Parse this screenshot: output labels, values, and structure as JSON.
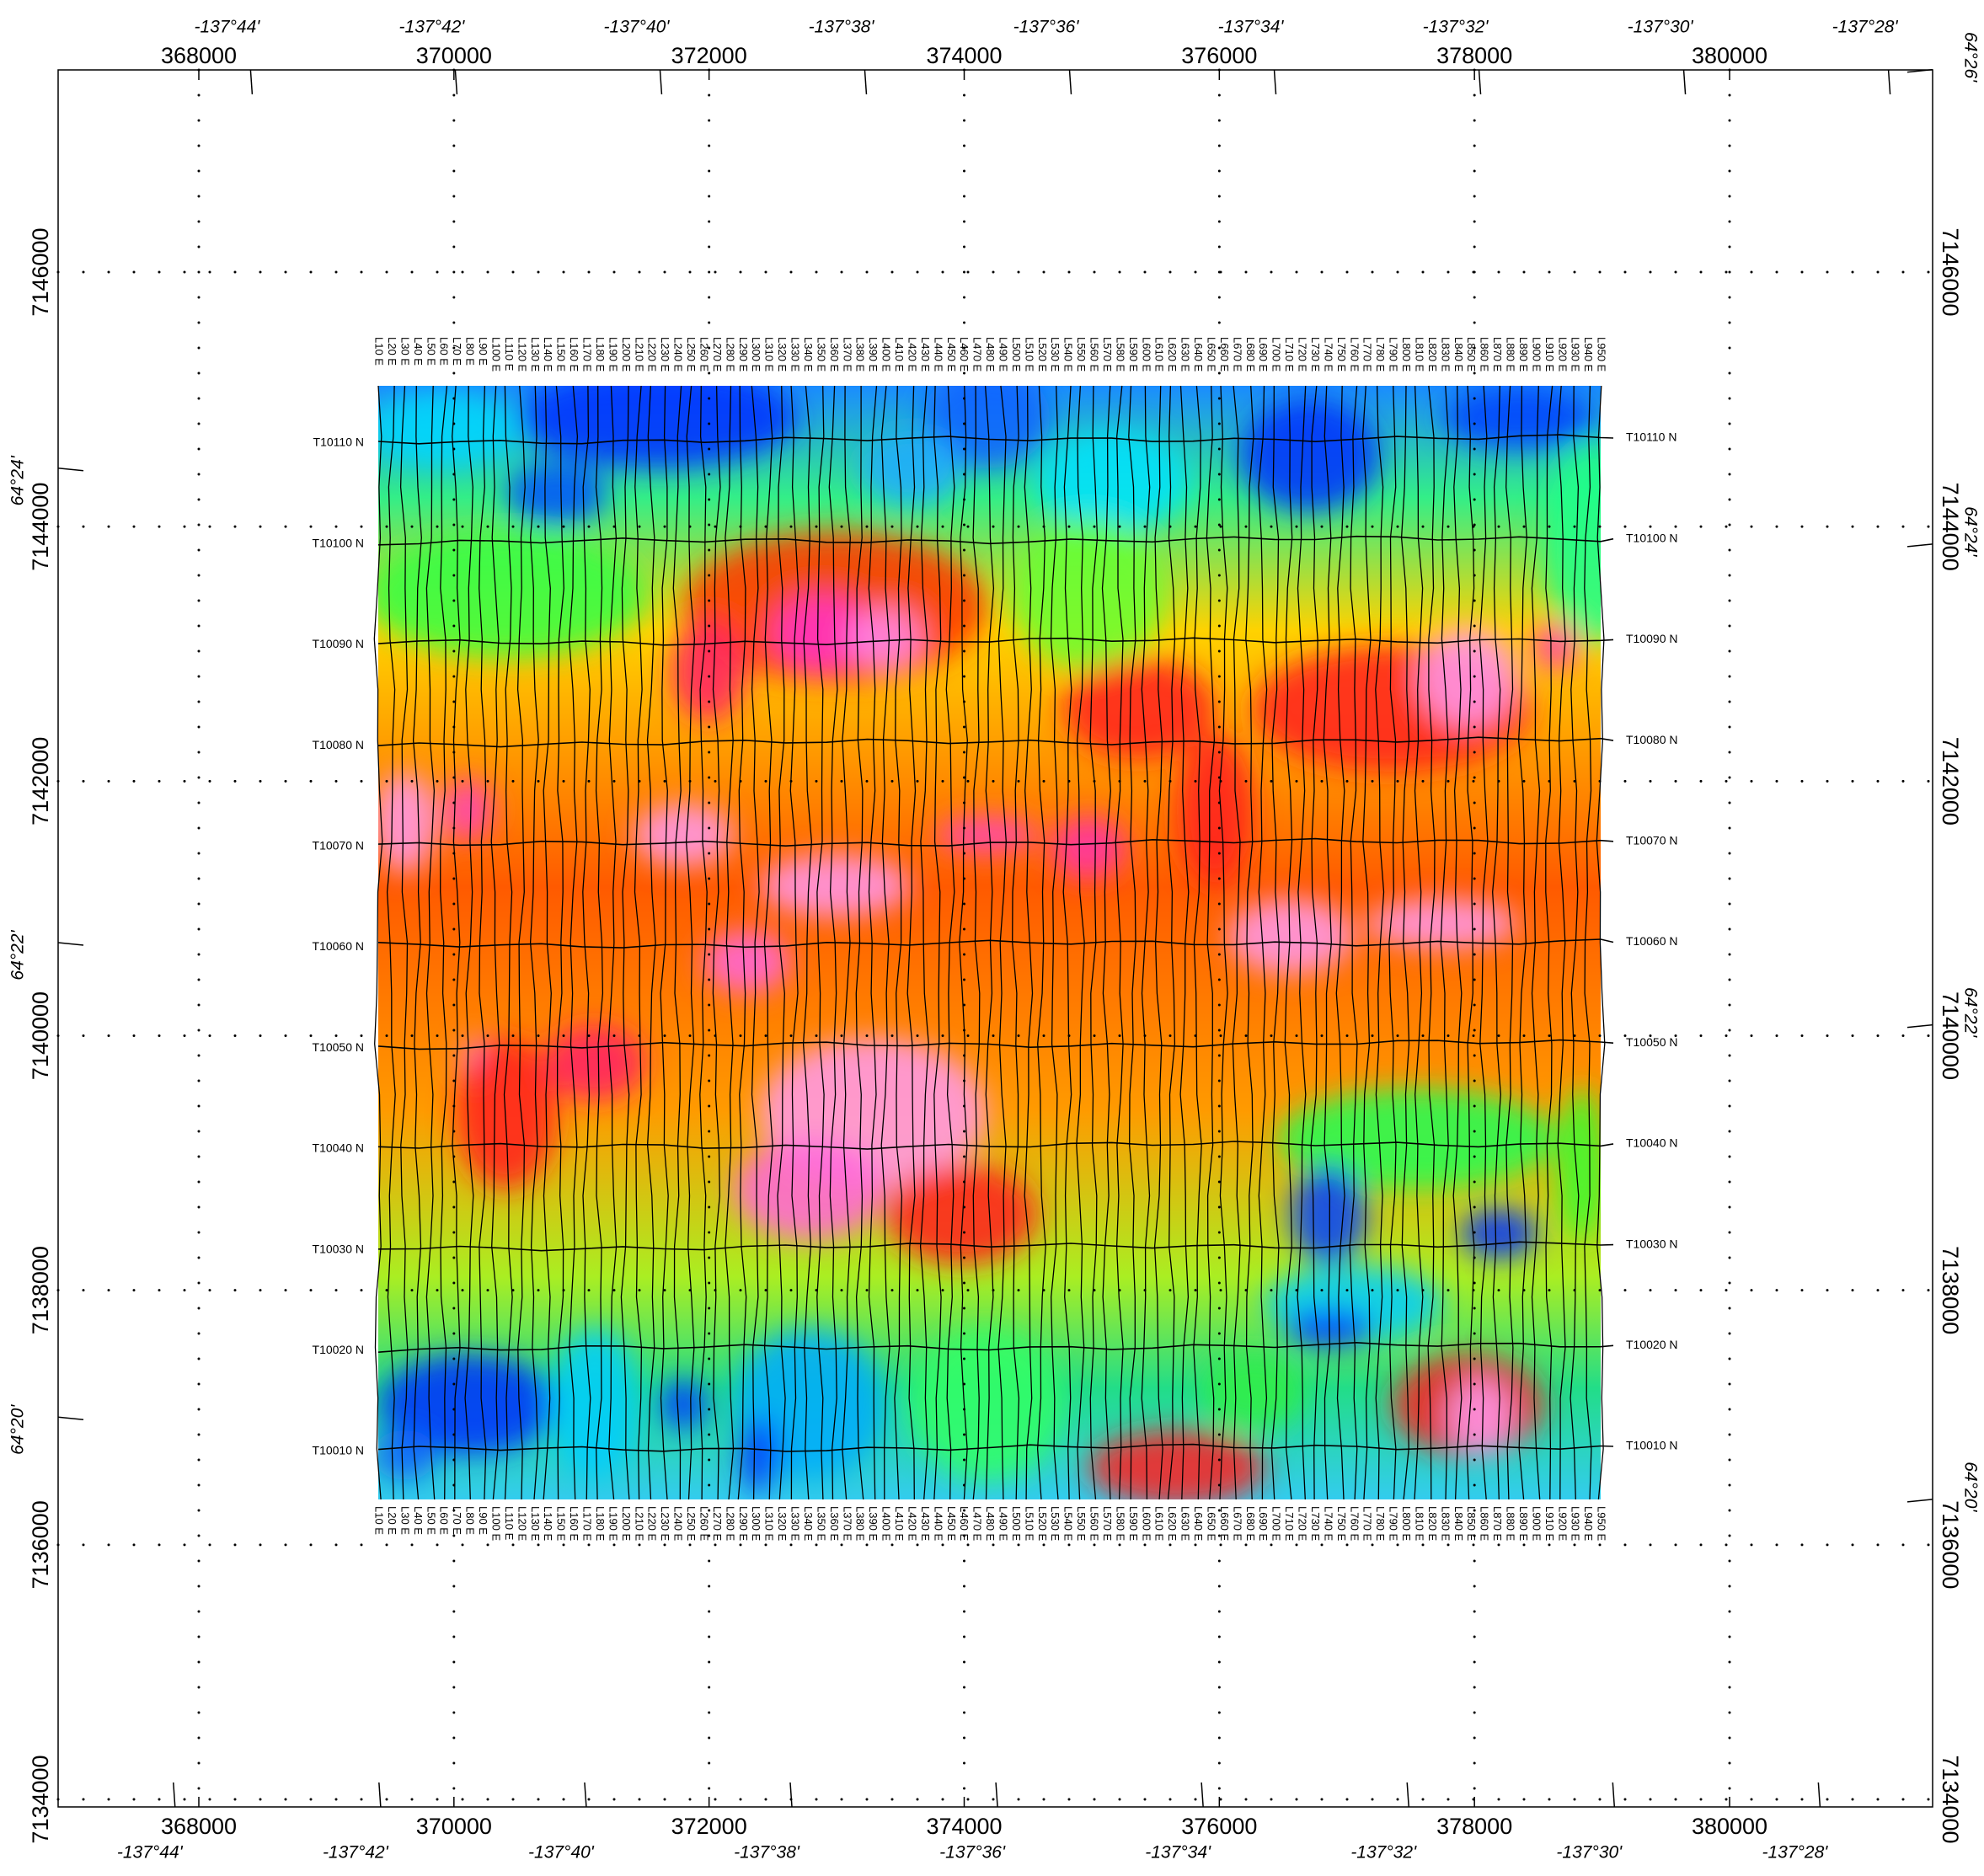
{
  "map": {
    "eastings": [
      368000,
      370000,
      372000,
      374000,
      376000,
      378000,
      380000
    ],
    "northings": [
      7146000,
      7144000,
      7142000,
      7140000,
      7138000,
      7136000,
      7134000
    ],
    "longitudes": [
      "-137°44'",
      "-137°42'",
      "-137°40'",
      "-137°38'",
      "-137°36'",
      "-137°34'",
      "-137°32'",
      "-137°30'",
      "-137°28'"
    ],
    "latitudes": [
      "64°26'",
      "64°24'",
      "64°22'",
      "64°20'"
    ],
    "tie_lines": [
      "T10110 N",
      "T10100 N",
      "T10090 N",
      "T10080 N",
      "T10070 N",
      "T10060 N",
      "T10050 N",
      "T10040 N",
      "T10030 N",
      "T10020 N",
      "T10010 N"
    ],
    "survey_lines": [
      "L10 E",
      "L20 E",
      "L30 E",
      "L40 E",
      "L50 E",
      "L60 E",
      "L70 E",
      "L80 E",
      "L90 E",
      "L100 E",
      "L110 E",
      "L120 E",
      "L130 E",
      "L140 E",
      "L150 E",
      "L160 E",
      "L170 E",
      "L180 E",
      "L190 E",
      "L200 E",
      "L210 E",
      "L220 E",
      "L230 E",
      "L240 E",
      "L250 E",
      "L260 E",
      "L270 E",
      "L280 E",
      "L290 E",
      "L300 E",
      "L310 E",
      "L320 E",
      "L330 E",
      "L340 E",
      "L350 E",
      "L360 E",
      "L370 E",
      "L380 E",
      "L390 E",
      "L400 E",
      "L410 E",
      "L420 E",
      "L430 E",
      "L440 E",
      "L450 E",
      "L460 E",
      "L470 E",
      "L480 E",
      "L490 E",
      "L500 E",
      "L510 E",
      "L520 E",
      "L530 E",
      "L540 E",
      "L550 E",
      "L560 E",
      "L570 E",
      "L580 E",
      "L590 E",
      "L600 E",
      "L610 E",
      "L620 E",
      "L630 E",
      "L640 E",
      "L650 E",
      "L660 E",
      "L670 E",
      "L680 E",
      "L690 E",
      "L700 E",
      "L710 E",
      "L720 E",
      "L730 E",
      "L740 E",
      "L750 E",
      "L760 E",
      "L770 E",
      "L780 E",
      "L790 E",
      "L800 E",
      "L810 E",
      "L820 E",
      "L830 E",
      "L840 E",
      "L850 E",
      "L860 E",
      "L870 E",
      "L880 E",
      "L890 E",
      "L900 E",
      "L910 E",
      "L920 E",
      "L930 E",
      "L940 E",
      "L950 E"
    ]
  }
}
